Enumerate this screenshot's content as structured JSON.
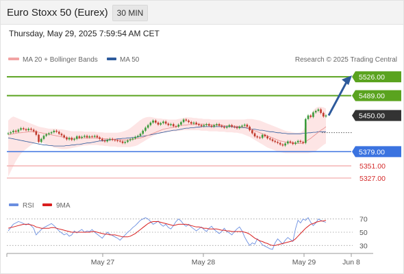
{
  "header": {
    "title": "Euro Stoxx 50 (Eurex)",
    "interval": "30 MIN"
  },
  "timestamp": "Thursday, May 29, 2025 7:59:54 AM CET",
  "legend": {
    "ma20": "MA 20 + Bollinger Bands",
    "ma50": "MA 50",
    "source": "Research © 2025 Trading Central"
  },
  "rsi_legend": {
    "rsi": "RSI",
    "ma": "9MA"
  },
  "colors": {
    "target": "#5aa31f",
    "support": "#3b73e0",
    "resistance_light": "#f2a3a3",
    "bollinger_fill": "#fde0e0",
    "ma20": "#e88d8d",
    "ma50": "#2d5a9c",
    "candle_up": "#3a9a3a",
    "candle_down": "#c0392b",
    "rsi": "#6a8ee0",
    "rsi_ma": "#d91e1e",
    "arrow": "#2d5a9c"
  },
  "chart_data": [
    {
      "type": "candlestick",
      "title": "Euro Stoxx 50 (Eurex)",
      "interval": "30 MIN",
      "ylim": [
        5300,
        5545
      ],
      "x_ticks": [
        "May 27",
        "May 28",
        "May 29",
        "Jun 8"
      ],
      "levels": [
        {
          "value": 5526.0,
          "label": "5526.00",
          "kind": "target"
        },
        {
          "value": 5489.0,
          "label": "5489.00",
          "kind": "target"
        },
        {
          "value": 5450.0,
          "label": "5450.00",
          "kind": "current"
        },
        {
          "value": 5379.0,
          "label": "5379.00",
          "kind": "pivot"
        },
        {
          "value": 5351.0,
          "label": "5351.00",
          "kind": "support"
        },
        {
          "value": 5327.0,
          "label": "5327.00",
          "kind": "support"
        }
      ],
      "close": [
        5415,
        5417,
        5420,
        5418,
        5422,
        5425,
        5423,
        5421,
        5424,
        5422,
        5419,
        5412,
        5398,
        5404,
        5410,
        5413,
        5415,
        5417,
        5420,
        5418,
        5414,
        5411,
        5407,
        5403,
        5406,
        5402,
        5404,
        5409,
        5406,
        5408,
        5410,
        5407,
        5409,
        5408,
        5410,
        5407,
        5404,
        5401,
        5399,
        5402,
        5404,
        5402,
        5401,
        5400,
        5399,
        5396,
        5398,
        5401,
        5403,
        5405,
        5408,
        5410,
        5414,
        5420,
        5426,
        5431,
        5436,
        5440,
        5436,
        5432,
        5435,
        5438,
        5434,
        5431,
        5433,
        5429,
        5428,
        5432,
        5437,
        5442,
        5440,
        5437,
        5434,
        5436,
        5433,
        5431,
        5429,
        5431,
        5433,
        5430,
        5428,
        5431,
        5433,
        5430,
        5428,
        5426,
        5428,
        5431,
        5428,
        5427,
        5425,
        5428,
        5430,
        5432,
        5428,
        5421,
        5415,
        5409,
        5407,
        5406,
        5412,
        5409,
        5405,
        5403,
        5400,
        5398,
        5396,
        5393,
        5391,
        5395,
        5399,
        5397,
        5394,
        5397,
        5400,
        5398,
        5396,
        5443,
        5450,
        5447,
        5456,
        5459,
        5462,
        5455,
        5448,
        5450
      ],
      "ma20": [
        5412,
        5413,
        5414,
        5415,
        5416,
        5416,
        5417,
        5417,
        5418,
        5418,
        5418,
        5418,
        5417,
        5416,
        5415,
        5414,
        5413,
        5412,
        5411,
        5410,
        5409,
        5408,
        5407,
        5406,
        5405,
        5405,
        5405,
        5405,
        5405,
        5406,
        5406,
        5406,
        5406,
        5406,
        5406,
        5406,
        5405,
        5405,
        5404,
        5404,
        5403,
        5403,
        5403,
        5402,
        5402,
        5402,
        5402,
        5402,
        5403,
        5403,
        5404,
        5405,
        5406,
        5407,
        5409,
        5411,
        5413,
        5415,
        5417,
        5419,
        5421,
        5423,
        5424,
        5425,
        5426,
        5427,
        5428,
        5429,
        5430,
        5431,
        5431,
        5432,
        5432,
        5432,
        5433,
        5433,
        5433,
        5433,
        5432,
        5432,
        5432,
        5431,
        5431,
        5431,
        5431,
        5430,
        5430,
        5430,
        5430,
        5429,
        5429,
        5428,
        5428,
        5427,
        5426,
        5424,
        5422,
        5420,
        5418,
        5416,
        5414,
        5412,
        5410,
        5408,
        5406,
        5404,
        5402,
        5400,
        5399,
        5398,
        5397,
        5396,
        5396,
        5395,
        5395,
        5395,
        5395,
        5398,
        5402,
        5405,
        5409,
        5413,
        5417,
        5421,
        5424,
        5428
      ],
      "ma50": [
        5406,
        5405,
        5404,
        5403,
        5402,
        5401,
        5400,
        5399,
        5398,
        5397,
        5396,
        5395,
        5394,
        5393,
        5392,
        5392,
        5391,
        5391,
        5390,
        5390,
        5390,
        5390,
        5390,
        5391,
        5391,
        5392,
        5392,
        5393,
        5393,
        5394,
        5395,
        5396,
        5396,
        5397,
        5398,
        5399,
        5400,
        5400,
        5401,
        5402,
        5402,
        5403,
        5403,
        5404,
        5404,
        5405,
        5405,
        5406,
        5406,
        5407,
        5407,
        5408,
        5409,
        5409,
        5410,
        5411,
        5412,
        5413,
        5414,
        5415,
        5416,
        5417,
        5418,
        5419,
        5420,
        5421,
        5421,
        5422,
        5423,
        5424,
        5425,
        5425,
        5426,
        5426,
        5427,
        5427,
        5428,
        5428,
        5428,
        5428,
        5428,
        5428,
        5428,
        5428,
        5428,
        5428,
        5428,
        5428,
        5428,
        5427,
        5427,
        5427,
        5426,
        5426,
        5425,
        5424,
        5423,
        5423,
        5422,
        5421,
        5421,
        5420,
        5419,
        5418,
        5418,
        5417,
        5416,
        5416,
        5415,
        5415,
        5414,
        5414,
        5414,
        5414,
        5414,
        5414,
        5415,
        5415,
        5416,
        5416,
        5417,
        5417,
        5418,
        5418,
        5418,
        5418
      ],
      "bb_upper": [
        5440,
        5445,
        5448,
        5446,
        5444,
        5442,
        5440,
        5438,
        5436,
        5434,
        5432,
        5430,
        5428,
        5427,
        5426,
        5425,
        5424,
        5424,
        5424,
        5424,
        5423,
        5423,
        5422,
        5421,
        5420,
        5419,
        5419,
        5419,
        5419,
        5419,
        5418,
        5418,
        5418,
        5418,
        5418,
        5417,
        5417,
        5417,
        5416,
        5416,
        5416,
        5416,
        5416,
        5416,
        5417,
        5418,
        5420,
        5422,
        5425,
        5429,
        5433,
        5437,
        5441,
        5444,
        5446,
        5447,
        5447,
        5446,
        5445,
        5444,
        5444,
        5443,
        5443,
        5442,
        5442,
        5442,
        5442,
        5443,
        5444,
        5445,
        5446,
        5446,
        5446,
        5445,
        5445,
        5444,
        5444,
        5443,
        5443,
        5443,
        5442,
        5442,
        5442,
        5442,
        5442,
        5442,
        5442,
        5442,
        5442,
        5442,
        5442,
        5442,
        5442,
        5442,
        5443,
        5443,
        5443,
        5442,
        5441,
        5440,
        5438,
        5436,
        5434,
        5432,
        5430,
        5428,
        5426,
        5424,
        5422,
        5420,
        5419,
        5418,
        5417,
        5416,
        5416,
        5417,
        5420,
        5430,
        5442,
        5452,
        5460,
        5465,
        5467,
        5467,
        5466,
        5464
      ],
      "bb_lower": [
        5330,
        5340,
        5350,
        5360,
        5368,
        5375,
        5380,
        5384,
        5388,
        5392,
        5395,
        5397,
        5398,
        5397,
        5395,
        5393,
        5391,
        5389,
        5387,
        5386,
        5385,
        5384,
        5384,
        5384,
        5385,
        5386,
        5387,
        5388,
        5389,
        5390,
        5391,
        5391,
        5392,
        5392,
        5392,
        5392,
        5391,
        5391,
        5390,
        5390,
        5389,
        5389,
        5389,
        5388,
        5388,
        5388,
        5388,
        5388,
        5388,
        5389,
        5390,
        5392,
        5395,
        5398,
        5401,
        5404,
        5407,
        5410,
        5412,
        5414,
        5415,
        5416,
        5417,
        5418,
        5418,
        5419,
        5419,
        5420,
        5420,
        5421,
        5421,
        5421,
        5421,
        5421,
        5421,
        5421,
        5420,
        5420,
        5420,
        5419,
        5419,
        5419,
        5419,
        5418,
        5418,
        5418,
        5417,
        5417,
        5417,
        5416,
        5416,
        5415,
        5414,
        5412,
        5410,
        5408,
        5405,
        5402,
        5399,
        5396,
        5393,
        5390,
        5387,
        5385,
        5383,
        5381,
        5379,
        5378,
        5377,
        5376,
        5376,
        5376,
        5376,
        5376,
        5376,
        5376,
        5376,
        5376,
        5376,
        5377,
        5378,
        5380,
        5384,
        5388,
        5392,
        5395
      ],
      "rsi_ylim": [
        20,
        80
      ],
      "rsi_ticks": [
        70,
        50,
        30
      ],
      "rsi": [
        52,
        57,
        62,
        64,
        66,
        65,
        63,
        61,
        63,
        60,
        56,
        46,
        50,
        54,
        57,
        59,
        61,
        63,
        60,
        56,
        52,
        49,
        46,
        48,
        44,
        46,
        52,
        49,
        52,
        54,
        50,
        52,
        51,
        54,
        50,
        47,
        44,
        41,
        46,
        50,
        47,
        45,
        43,
        41,
        38,
        42,
        46,
        50,
        53,
        57,
        60,
        64,
        68,
        70,
        72,
        70,
        66,
        62,
        64,
        67,
        62,
        59,
        62,
        57,
        55,
        60,
        66,
        70,
        67,
        62,
        59,
        62,
        58,
        55,
        52,
        55,
        58,
        54,
        51,
        56,
        59,
        54,
        51,
        48,
        51,
        56,
        51,
        49,
        46,
        51,
        55,
        58,
        52,
        43,
        36,
        30,
        34,
        32,
        40,
        36,
        31,
        29,
        27,
        25,
        24,
        34,
        40,
        36,
        32,
        38,
        42,
        39,
        36,
        55,
        68,
        64,
        70,
        68,
        72,
        65,
        60,
        64,
        70,
        68,
        66,
        65
      ],
      "rsi_ma": [
        56,
        57,
        58,
        59,
        60,
        61,
        62,
        62,
        62,
        61,
        60,
        58,
        57,
        56,
        56,
        56,
        56,
        57,
        57,
        56,
        55,
        54,
        53,
        52,
        51,
        50,
        50,
        50,
        50,
        50,
        50,
        50,
        50,
        51,
        51,
        50,
        49,
        48,
        47,
        47,
        46,
        46,
        46,
        45,
        44,
        43,
        43,
        43,
        44,
        46,
        48,
        51,
        54,
        57,
        60,
        63,
        65,
        66,
        66,
        66,
        65,
        64,
        63,
        62,
        61,
        60,
        61,
        62,
        62,
        62,
        62,
        61,
        60,
        59,
        58,
        58,
        57,
        56,
        56,
        55,
        55,
        55,
        55,
        54,
        53,
        53,
        52,
        52,
        51,
        51,
        51,
        51,
        51,
        50,
        49,
        47,
        44,
        41,
        39,
        37,
        36,
        34,
        33,
        31,
        30,
        30,
        31,
        32,
        33,
        34,
        35,
        36,
        37,
        40,
        44,
        48,
        52,
        56,
        59,
        62,
        63,
        65,
        66,
        67,
        67,
        68
      ]
    }
  ]
}
